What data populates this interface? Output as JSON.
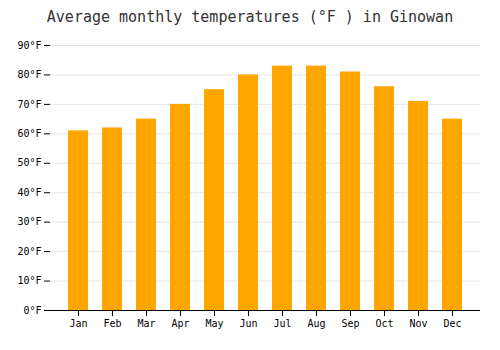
{
  "chart_data": {
    "type": "bar",
    "title": "Average monthly temperatures (°F ) in Ginowan",
    "categories": [
      "Jan",
      "Feb",
      "Mar",
      "Apr",
      "May",
      "Jun",
      "Jul",
      "Aug",
      "Sep",
      "Oct",
      "Nov",
      "Dec"
    ],
    "values": [
      61,
      62,
      65,
      70,
      75,
      80,
      83,
      83,
      81,
      76,
      71,
      65
    ],
    "color": "#FFA500",
    "ylim": [
      0,
      90
    ],
    "yticks": [
      {
        "value": 0,
        "label": "0°F"
      },
      {
        "value": 10,
        "label": "10°F"
      },
      {
        "value": 20,
        "label": "20°F"
      },
      {
        "value": 30,
        "label": "30°F"
      },
      {
        "value": 40,
        "label": "40°F"
      },
      {
        "value": 50,
        "label": "50°F"
      },
      {
        "value": 60,
        "label": "60°F"
      },
      {
        "value": 70,
        "label": "70°F"
      },
      {
        "value": 80,
        "label": "80°F"
      },
      {
        "value": 90,
        "label": "90°F"
      }
    ],
    "grid": true
  }
}
